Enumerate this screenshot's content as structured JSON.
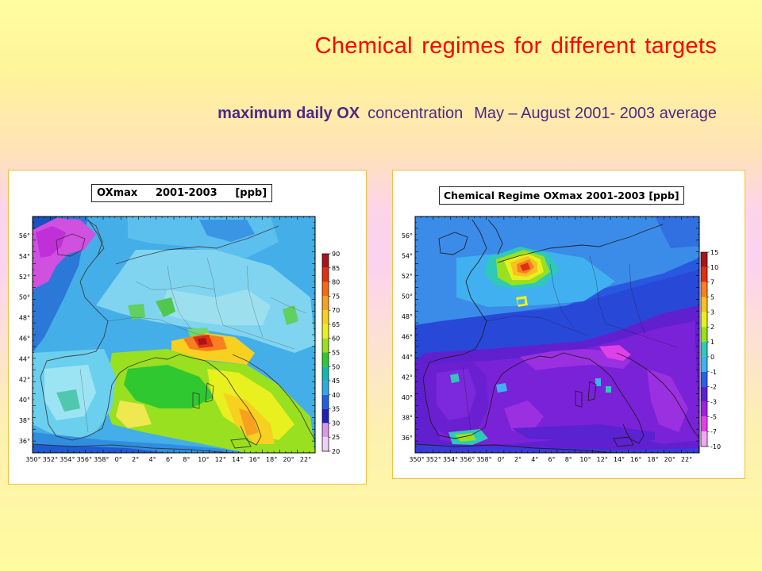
{
  "title": "Chemical regimes for different targets",
  "subtitle": {
    "part1": "maximum daily OX",
    "part2": "concentration",
    "part3": "May – August 2001- 2003 average"
  },
  "maps": [
    {
      "title": "OXmax     2001-2003     [ppb]",
      "lat_labels": [
        "56°",
        "54°",
        "52°",
        "50°",
        "48°",
        "46°",
        "44°",
        "42°",
        "40°",
        "38°",
        "36°"
      ],
      "lon_labels": [
        "350°",
        "352°",
        "354°",
        "356°",
        "358°",
        "0°",
        "2°",
        "4°",
        "6°",
        "8°",
        "10°",
        "12°",
        "14°",
        "16°",
        "18°",
        "20°",
        "22°"
      ],
      "colorbar_labels": [
        "90",
        "85",
        "80",
        "75",
        "70",
        "65",
        "60",
        "55",
        "50",
        "45",
        "40",
        "35",
        "30",
        "25",
        "20"
      ],
      "colorbar_colors": [
        "#a8141a",
        "#e03010",
        "#f86a10",
        "#f8a020",
        "#f8d020",
        "#e8f020",
        "#98e020",
        "#30c830",
        "#10b8b0",
        "#30a8e8",
        "#2060e0",
        "#2020b8",
        "#d898e8",
        "#f0d0f4"
      ]
    },
    {
      "title": "Chemical Regime OXmax 2001-2003 [ppb]",
      "lat_labels": [
        "56°",
        "54°",
        "52°",
        "50°",
        "48°",
        "46°",
        "44°",
        "42°",
        "40°",
        "38°",
        "36°"
      ],
      "lon_labels": [
        "350°",
        "352°",
        "354°",
        "356°",
        "358°",
        "0°",
        "2°",
        "4°",
        "6°",
        "8°",
        "10°",
        "12°",
        "14°",
        "16°",
        "18°",
        "20°",
        "22°"
      ],
      "colorbar_labels": [
        "15",
        "10",
        "7",
        "5",
        "3",
        "2",
        "1",
        "0",
        "-1",
        "-2",
        "-3",
        "-5",
        "-7",
        "-10"
      ],
      "colorbar_colors": [
        "#a8141a",
        "#e03010",
        "#f88020",
        "#f8c020",
        "#e8f020",
        "#98e020",
        "#30c8b8",
        "#40b0f0",
        "#2860e8",
        "#6020d0",
        "#a020e0",
        "#e040e8",
        "#f0a8f0"
      ]
    }
  ]
}
